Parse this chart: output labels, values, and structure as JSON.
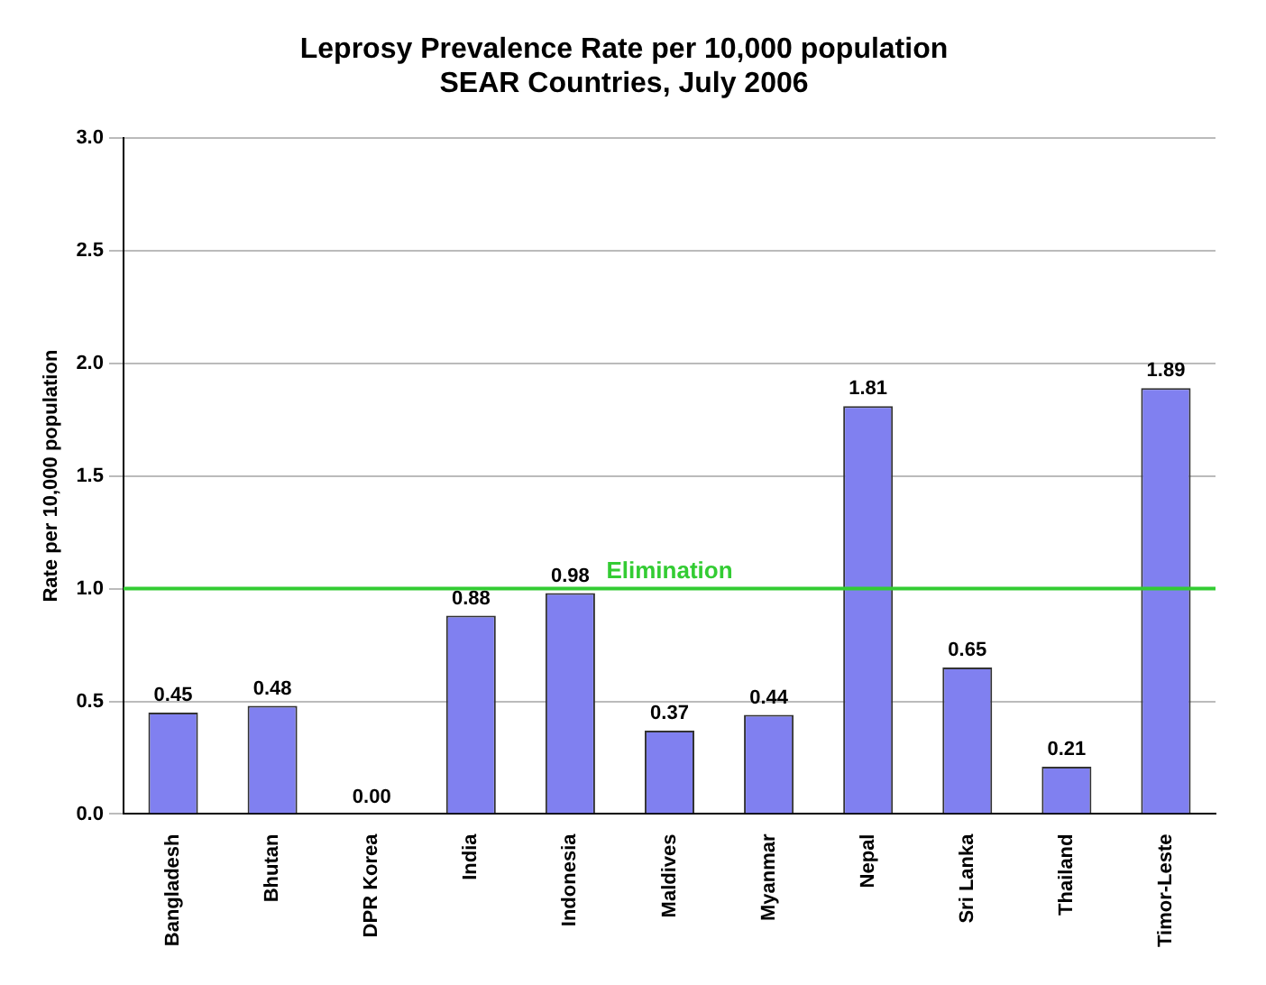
{
  "chart_data": {
    "type": "bar",
    "title": "Leprosy Prevalence Rate per 10,000 population\nSEAR Countries, July 2006",
    "ylabel": "Rate per 10,000 population",
    "categories": [
      "Bangladesh",
      "Bhutan",
      "DPR Korea",
      "India",
      "Indonesia",
      "Maldives",
      "Myanmar",
      "Nepal",
      "Sri Lanka",
      "Thailand",
      "Timor-Leste"
    ],
    "values": [
      0.45,
      0.48,
      0,
      0.88,
      0.98,
      0.37,
      0.44,
      1.81,
      0.65,
      0.21,
      1.89
    ],
    "value_labels": [
      "0.45",
      "0.48",
      "0.00",
      "0.88",
      "0.98",
      "0.37",
      "0.44",
      "1.81",
      "0.65",
      "0.21",
      "1.89"
    ],
    "color": "#8080f0",
    "ylim": [
      0,
      3
    ],
    "yticks": [
      {
        "value": 0,
        "label": "0.0"
      },
      {
        "value": 0.5,
        "label": "0.5"
      },
      {
        "value": 1,
        "label": "1.0"
      },
      {
        "value": 1.5,
        "label": "1.5"
      },
      {
        "value": 2,
        "label": "2.0"
      },
      {
        "value": 2.5,
        "label": "2.5"
      },
      {
        "value": 3,
        "label": "3.0"
      }
    ],
    "grid": "y",
    "legend": false,
    "ref_lines": [
      {
        "axis": "y",
        "value": 1,
        "label": "Elimination",
        "color": "#33cc33"
      }
    ]
  }
}
